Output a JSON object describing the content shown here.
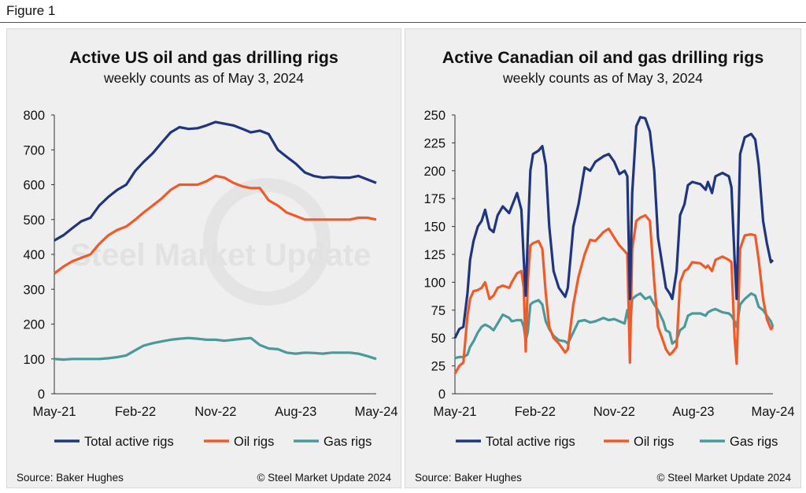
{
  "figure_label": "Figure 1",
  "watermark": "Steel Market Update",
  "colors": {
    "total": "#1f3580",
    "oil": "#f05a28",
    "gas": "#4a9a9c"
  },
  "chart_data": [
    {
      "type": "line",
      "title": "Active US oil and gas drilling rigs",
      "subtitle": "weekly counts as of May 3, 2024",
      "source": "Source: Baker Hughes",
      "copyright": "© Steel Market Update 2024",
      "ylim": [
        0,
        800
      ],
      "yticks": [
        0,
        100,
        200,
        300,
        400,
        500,
        600,
        700,
        800
      ],
      "xlim": [
        "2021-05-01",
        "2024-05-01"
      ],
      "xticks": [
        {
          "date": "2021-05-01",
          "label": "May-21"
        },
        {
          "date": "2022-02-01",
          "label": "Feb-22"
        },
        {
          "date": "2022-11-01",
          "label": "Nov-22"
        },
        {
          "date": "2023-08-01",
          "label": "Aug-23"
        },
        {
          "date": "2024-05-01",
          "label": "May-24"
        }
      ],
      "grid": false,
      "legend": "bottom",
      "x": [
        "2021-05",
        "2021-06",
        "2021-07",
        "2021-08",
        "2021-09",
        "2021-10",
        "2021-11",
        "2021-12",
        "2022-01",
        "2022-02",
        "2022-03",
        "2022-04",
        "2022-05",
        "2022-06",
        "2022-07",
        "2022-08",
        "2022-09",
        "2022-10",
        "2022-11",
        "2022-12",
        "2023-01",
        "2023-02",
        "2023-03",
        "2023-04",
        "2023-05",
        "2023-06",
        "2023-07",
        "2023-08",
        "2023-09",
        "2023-10",
        "2023-11",
        "2023-12",
        "2024-01",
        "2024-02",
        "2024-03",
        "2024-04",
        "2024-05"
      ],
      "series": [
        {
          "name": "Total active rigs",
          "key": "total",
          "values": [
            440,
            455,
            475,
            495,
            505,
            540,
            565,
            585,
            600,
            640,
            665,
            690,
            720,
            750,
            765,
            760,
            762,
            770,
            780,
            775,
            770,
            760,
            750,
            755,
            745,
            700,
            680,
            660,
            635,
            625,
            620,
            622,
            620,
            620,
            625,
            615,
            605
          ]
        },
        {
          "name": "Oil rigs",
          "key": "oil",
          "values": [
            345,
            365,
            380,
            390,
            400,
            430,
            455,
            470,
            480,
            500,
            520,
            540,
            560,
            585,
            600,
            600,
            600,
            610,
            625,
            620,
            605,
            595,
            590,
            590,
            555,
            540,
            520,
            510,
            500,
            500,
            500,
            500,
            500,
            500,
            505,
            505,
            500
          ]
        },
        {
          "name": "Gas rigs",
          "key": "gas",
          "values": [
            100,
            98,
            100,
            100,
            100,
            100,
            102,
            105,
            110,
            125,
            138,
            145,
            150,
            155,
            158,
            160,
            158,
            155,
            155,
            152,
            155,
            158,
            160,
            140,
            130,
            128,
            118,
            115,
            118,
            117,
            115,
            118,
            118,
            118,
            115,
            108,
            100
          ]
        }
      ]
    },
    {
      "type": "line",
      "title": "Active Canadian oil and gas drilling rigs",
      "subtitle": "weekly counts as of May 3, 2024",
      "source": "Source: Baker Hughes",
      "copyright": "© Steel Market Update 2024",
      "ylim": [
        0,
        250
      ],
      "yticks": [
        0,
        25,
        50,
        75,
        100,
        125,
        150,
        175,
        200,
        225,
        250
      ],
      "xlim": [
        "2021-05-01",
        "2024-05-01"
      ],
      "xticks": [
        {
          "date": "2021-05-01",
          "label": "May-21"
        },
        {
          "date": "2022-02-01",
          "label": "Feb-22"
        },
        {
          "date": "2022-11-01",
          "label": "Nov-22"
        },
        {
          "date": "2023-08-01",
          "label": "Aug-23"
        },
        {
          "date": "2024-05-01",
          "label": "May-24"
        }
      ],
      "grid": false,
      "legend": "bottom",
      "x": [
        "2021-05-01",
        "2021-05-16",
        "2021-05-30",
        "2021-06-13",
        "2021-06-22",
        "2021-07-04",
        "2021-07-19",
        "2021-08-01",
        "2021-08-13",
        "2021-08-28",
        "2021-09-11",
        "2021-09-25",
        "2021-10-13",
        "2021-11-04",
        "2021-11-13",
        "2021-12-01",
        "2021-12-16",
        "2021-12-24",
        "2021-12-31",
        "2022-01-07",
        "2022-01-16",
        "2022-01-25",
        "2022-02-13",
        "2022-02-26",
        "2022-03-10",
        "2022-03-22",
        "2022-04-06",
        "2022-04-24",
        "2022-05-16",
        "2022-05-25",
        "2022-06-13",
        "2022-07-01",
        "2022-07-22",
        "2022-08-10",
        "2022-08-28",
        "2022-09-25",
        "2022-10-13",
        "2022-11-01",
        "2022-11-19",
        "2022-12-07",
        "2022-12-16",
        "2022-12-25",
        "2023-01-02",
        "2023-01-16",
        "2023-01-30",
        "2023-02-16",
        "2023-03-04",
        "2023-03-19",
        "2023-04-01",
        "2023-04-19",
        "2023-04-28",
        "2023-05-11",
        "2023-05-20",
        "2023-06-04",
        "2023-06-16",
        "2023-07-01",
        "2023-07-13",
        "2023-07-28",
        "2023-08-25",
        "2023-09-12",
        "2023-09-20",
        "2023-10-04",
        "2023-10-16",
        "2023-11-09",
        "2023-12-01",
        "2023-12-10",
        "2023-12-21",
        "2023-12-28",
        "2024-01-09",
        "2024-01-25",
        "2024-02-16",
        "2024-03-01",
        "2024-03-13",
        "2024-03-28",
        "2024-04-10",
        "2024-04-24",
        "2024-05-01"
      ],
      "series": [
        {
          "name": "Total active rigs",
          "key": "total",
          "values": [
            50,
            58,
            60,
            90,
            120,
            137,
            150,
            155,
            165,
            148,
            145,
            160,
            168,
            162,
            168,
            180,
            165,
            120,
            88,
            140,
            200,
            215,
            218,
            222,
            205,
            150,
            110,
            95,
            87,
            95,
            150,
            170,
            203,
            200,
            208,
            213,
            215,
            208,
            197,
            200,
            195,
            85,
            180,
            240,
            248,
            247,
            235,
            200,
            140,
            110,
            95,
            90,
            85,
            110,
            160,
            170,
            187,
            190,
            188,
            183,
            190,
            180,
            195,
            198,
            195,
            185,
            120,
            85,
            215,
            230,
            233,
            228,
            205,
            155,
            135,
            118,
            120
          ]
        },
        {
          "name": "Oil rigs",
          "key": "oil",
          "values": [
            18,
            25,
            28,
            70,
            85,
            92,
            93,
            95,
            100,
            85,
            88,
            95,
            97,
            95,
            100,
            108,
            110,
            95,
            38,
            100,
            133,
            135,
            137,
            130,
            90,
            60,
            50,
            45,
            37,
            40,
            80,
            105,
            125,
            138,
            137,
            145,
            148,
            140,
            133,
            128,
            125,
            28,
            130,
            155,
            158,
            160,
            155,
            100,
            60,
            47,
            40,
            35,
            37,
            42,
            100,
            110,
            112,
            118,
            117,
            113,
            115,
            110,
            120,
            123,
            120,
            118,
            50,
            27,
            130,
            142,
            143,
            142,
            120,
            85,
            67,
            58,
            60
          ]
        },
        {
          "name": "Gas rigs",
          "key": "gas",
          "values": [
            32,
            33,
            33,
            35,
            42,
            47,
            55,
            60,
            62,
            60,
            57,
            63,
            71,
            68,
            65,
            66,
            66,
            60,
            48,
            55,
            80,
            82,
            84,
            80,
            65,
            58,
            52,
            48,
            47,
            45,
            55,
            65,
            66,
            64,
            65,
            68,
            66,
            67,
            65,
            63,
            75,
            60,
            85,
            88,
            90,
            85,
            87,
            80,
            75,
            65,
            57,
            55,
            45,
            48,
            57,
            60,
            70,
            72,
            72,
            70,
            73,
            75,
            76,
            73,
            72,
            70,
            65,
            60,
            80,
            85,
            90,
            88,
            78,
            75,
            70,
            65,
            60
          ]
        }
      ]
    }
  ]
}
